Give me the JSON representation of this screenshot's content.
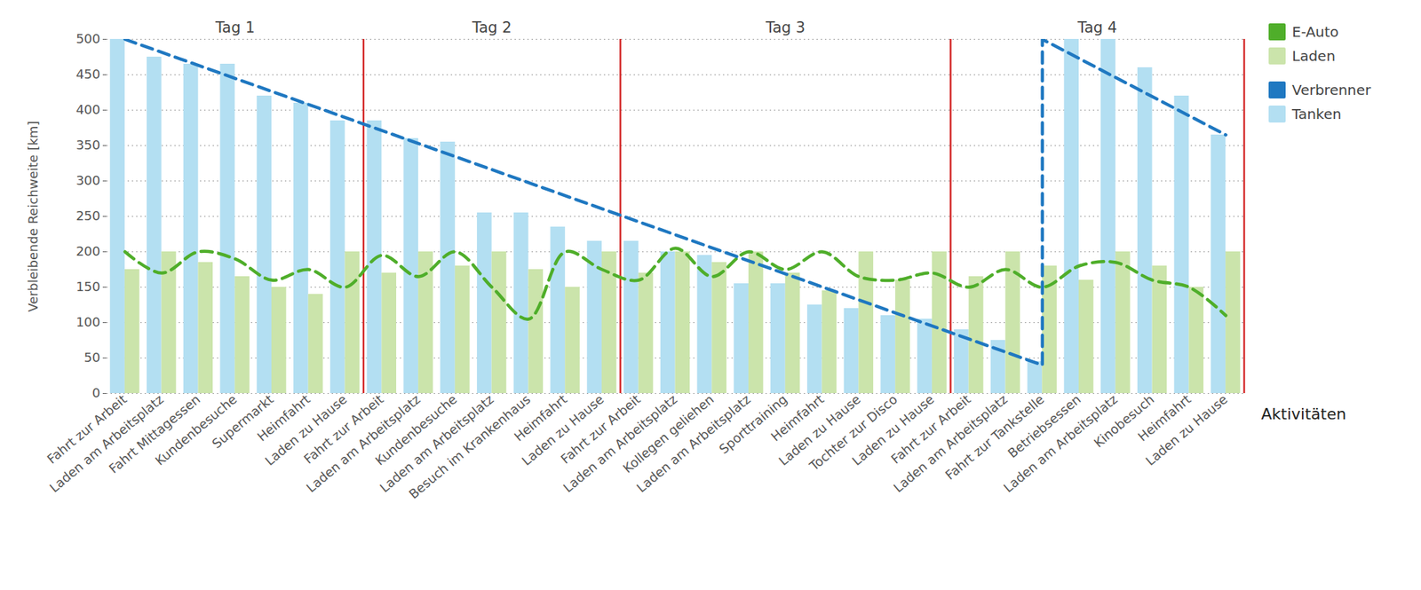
{
  "chart_data": {
    "type": "bar",
    "y_label": "Verbleibende Reichweite [km]",
    "x_label": "Aktivitäten",
    "categories": [
      "Fahrt zur Arbeit",
      "Laden am Arbeitsplatz",
      "Fahrt Mittagessen",
      "Kundenbesuche",
      "Supermarkt",
      "Heimfahrt",
      "Laden zu Hause",
      "Fahrt zur Arbeit",
      "Laden am Arbeitsplatz",
      "Kundenbesuche",
      "Laden am Arbeitsplatz",
      "Besuch im Krankenhaus",
      "Heimfahrt",
      "Laden zu Hause",
      "Fahrt zur Arbeit",
      "Laden am Arbeitsplatz",
      "Kollegen geliehen",
      "Laden am Arbeitsplatz",
      "Sporttraining",
      "Heimfahrt",
      "Laden zu Hause",
      "Tochter zur Disco",
      "Laden zu Hause",
      "Fahrt zur Arbeit",
      "Laden am Arbeitsplatz",
      "Fahrt zur Tankstelle",
      "Betriebsessen",
      "Laden am Arbeitsplatz",
      "Kinobesuch",
      "Heimfahrt",
      "Laden zu Hause"
    ],
    "days": [
      {
        "name": "Tag 1",
        "count": 7
      },
      {
        "name": "Tag 2",
        "count": 7
      },
      {
        "name": "Tag 3",
        "count": 9
      },
      {
        "name": "Tag 4",
        "count": 8
      }
    ],
    "ylim": [
      0,
      500
    ],
    "yticks": [
      0,
      50,
      100,
      150,
      200,
      250,
      300,
      350,
      400,
      450,
      500
    ],
    "grid": true,
    "legend": "right",
    "series": [
      {
        "name": "E-Auto",
        "type": "line",
        "line_style": "dashed",
        "color": "#4fae2a",
        "values": [
          200,
          170,
          200,
          190,
          160,
          175,
          150,
          195,
          165,
          200,
          150,
          105,
          200,
          175,
          160,
          205,
          165,
          200,
          175,
          200,
          165,
          160,
          170,
          150,
          175,
          150,
          180,
          185,
          160,
          150,
          110
        ]
      },
      {
        "name": "Laden",
        "type": "bar",
        "color": "#cbe4ab",
        "values": [
          175,
          200,
          185,
          165,
          150,
          140,
          200,
          170,
          200,
          180,
          200,
          175,
          150,
          200,
          170,
          200,
          185,
          200,
          170,
          145,
          200,
          160,
          200,
          165,
          200,
          180,
          160,
          200,
          180,
          150,
          200
        ]
      },
      {
        "name": "Verbrenner",
        "type": "line",
        "line_style": "dashed",
        "color": "#1f78c1",
        "x": [
          0,
          25,
          25,
          30
        ],
        "values": [
          500,
          40,
          500,
          365
        ]
      },
      {
        "name": "Tanken",
        "type": "bar",
        "color": "#b3dff2",
        "values": [
          500,
          475,
          465,
          465,
          420,
          410,
          385,
          385,
          360,
          355,
          255,
          255,
          235,
          215,
          215,
          200,
          195,
          155,
          155,
          125,
          120,
          110,
          105,
          90,
          75,
          45,
          500,
          500,
          460,
          420,
          365
        ]
      }
    ]
  }
}
